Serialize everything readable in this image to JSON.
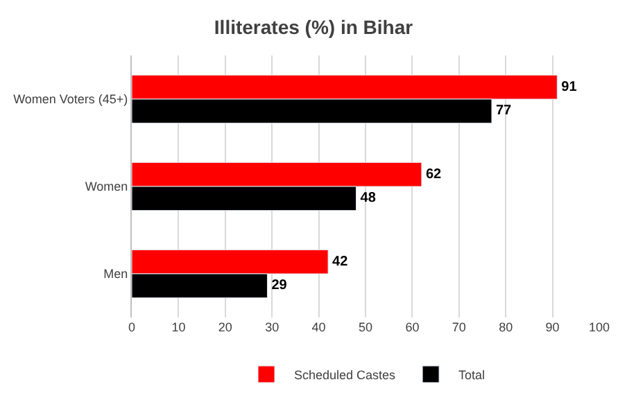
{
  "chart_data": {
    "type": "bar",
    "orientation": "horizontal",
    "title": "Illiterates (%) in Bihar",
    "categories": [
      "Women Voters (45+)",
      "Women",
      "Men"
    ],
    "series": [
      {
        "name": "Scheduled Castes",
        "color": "#ff0000",
        "values": [
          91,
          62,
          42
        ]
      },
      {
        "name": "Total",
        "color": "#000000",
        "values": [
          77,
          48,
          29
        ]
      }
    ],
    "xlim": [
      0,
      100
    ],
    "xticks": [
      0,
      10,
      20,
      30,
      40,
      50,
      60,
      70,
      80,
      90,
      100
    ],
    "grid": "x",
    "legend": "bottom",
    "data_labels": true
  }
}
